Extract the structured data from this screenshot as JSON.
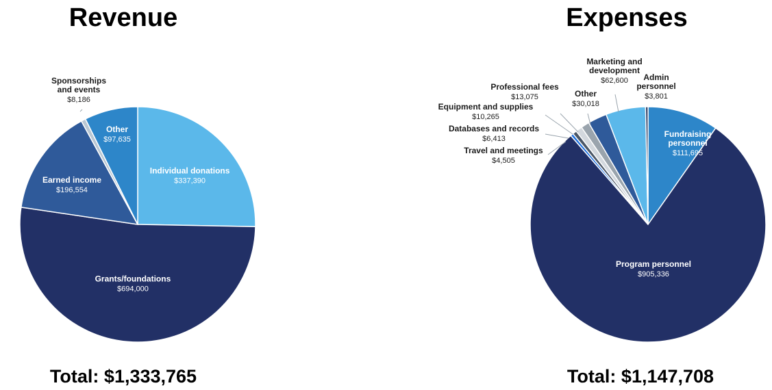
{
  "chart_data": [
    {
      "type": "pie",
      "title": "Revenue",
      "total_label": "Total:",
      "total_value": "$1,333,765",
      "slices": [
        {
          "name": "Individual donations",
          "label_lines": [
            "Individual donations"
          ],
          "value": 337390,
          "value_label": "$337,390",
          "color": "#5bb8ea"
        },
        {
          "name": "Grants/foundations",
          "label_lines": [
            "Grants/foundations"
          ],
          "value": 694000,
          "value_label": "$694,000",
          "color": "#223066"
        },
        {
          "name": "Earned income",
          "label_lines": [
            "Earned income"
          ],
          "value": 196554,
          "value_label": "$196,554",
          "color": "#2f5a9a"
        },
        {
          "name": "Sponsorships and events",
          "label_lines": [
            "Sponsorships",
            "and events"
          ],
          "value": 8186,
          "value_label": "$8,186",
          "color": "#b9c7d3"
        },
        {
          "name": "Other",
          "label_lines": [
            "Other"
          ],
          "value": 97635,
          "value_label": "$97,635",
          "color": "#2d86c9"
        }
      ]
    },
    {
      "type": "pie",
      "title": "Expenses",
      "total_label": "Total:",
      "total_value": "$1,147,708",
      "slices": [
        {
          "name": "Fundraising personnel",
          "label_lines": [
            "Fundraising",
            "personnel"
          ],
          "value": 111695,
          "value_label": "$111,695",
          "color": "#2d86c9"
        },
        {
          "name": "Program personnel",
          "label_lines": [
            "Program personnel"
          ],
          "value": 905336,
          "value_label": "$905,336",
          "color": "#223066"
        },
        {
          "name": "Travel and meetings",
          "label_lines": [
            "Travel and meetings"
          ],
          "value": 4505,
          "value_label": "$4,505",
          "color": "#1a6fe0"
        },
        {
          "name": "Databases and records",
          "label_lines": [
            "Databases and records"
          ],
          "value": 6413,
          "value_label": "$6,413",
          "color": "#4a5666"
        },
        {
          "name": "Equipment and supplies",
          "label_lines": [
            "Equipment and supplies"
          ],
          "value": 10265,
          "value_label": "$10,265",
          "color": "#d3d8de"
        },
        {
          "name": "Professional fees",
          "label_lines": [
            "Professional fees"
          ],
          "value": 13075,
          "value_label": "$13,075",
          "color": "#9aa4ad"
        },
        {
          "name": "Other",
          "label_lines": [
            "Other"
          ],
          "value": 30018,
          "value_label": "$30,018",
          "color": "#2f5a9a"
        },
        {
          "name": "Marketing and development",
          "label_lines": [
            "Marketing and",
            "development"
          ],
          "value": 62600,
          "value_label": "$62,600",
          "color": "#5bb8ea"
        },
        {
          "name": "Admin personnel",
          "label_lines": [
            "Admin",
            "personnel"
          ],
          "value": 3801,
          "value_label": "$3,801",
          "color": "#1b2a52"
        }
      ]
    }
  ]
}
